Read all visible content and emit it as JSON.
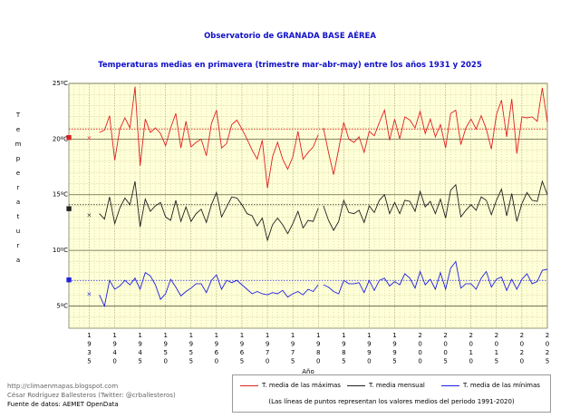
{
  "titles": {
    "main": "Observatorio de GRANADA BASE AÉREA",
    "subtitle": "Temperaturas medias en primavera (trimestre mar-abr-may) entre los años 1931 y 2025"
  },
  "y_label_letters": [
    "T",
    "e",
    "m",
    "p",
    "e",
    "r",
    "a",
    "t",
    "u",
    "r",
    "a"
  ],
  "footer": {
    "line1": "http://climaenmapas.blogspot.com",
    "line2": "César Rodríguez Ballesteros (Twitter: @crballesteros)",
    "line3": "Fuente de datos: AEMET OpenData"
  },
  "legend": {
    "max_label": "T. media de las máximas",
    "mean_label": "T. media mensual",
    "min_label": "T. media de las mínimas",
    "note": "(Las líneas de puntos representan los valores medios del periodo 1991-2020)"
  },
  "colors": {
    "max": "#e02020",
    "mean": "#202020",
    "min": "#2020e0",
    "plot_bg": "#ffffd8",
    "grid": "#c8c890",
    "title": "#1010c8"
  },
  "chart_data": {
    "type": "line",
    "title": "Temperaturas medias en primavera (trimestre mar-abr-may) entre los años 1931 y 2025",
    "xlabel": "Año",
    "ylabel": "Temperatura",
    "ylim": [
      3,
      25
    ],
    "xlim": [
      1931,
      2025
    ],
    "y_ticks": [
      5,
      10,
      15,
      20,
      25
    ],
    "y_tick_labels": [
      "5ºC",
      "10ºC",
      "15ºC",
      "20ºC",
      "25ºC"
    ],
    "x_ticks": [
      1935,
      1940,
      1945,
      1950,
      1955,
      1960,
      1965,
      1970,
      1975,
      1980,
      1985,
      1990,
      1995,
      2000,
      2005,
      2010,
      2015,
      2020,
      2025
    ],
    "x": [
      1931,
      1935,
      1937,
      1938,
      1939,
      1940,
      1941,
      1942,
      1943,
      1944,
      1945,
      1946,
      1947,
      1948,
      1949,
      1950,
      1951,
      1952,
      1953,
      1954,
      1955,
      1956,
      1957,
      1958,
      1959,
      1960,
      1961,
      1962,
      1963,
      1964,
      1965,
      1966,
      1967,
      1968,
      1969,
      1970,
      1971,
      1972,
      1973,
      1974,
      1975,
      1976,
      1977,
      1978,
      1979,
      1980,
      1981,
      1982,
      1983,
      1984,
      1985,
      1986,
      1987,
      1988,
      1989,
      1990,
      1991,
      1992,
      1993,
      1994,
      1995,
      1996,
      1997,
      1998,
      1999,
      2000,
      2001,
      2002,
      2003,
      2004,
      2005,
      2006,
      2007,
      2008,
      2009,
      2010,
      2011,
      2012,
      2013,
      2014,
      2015,
      2016,
      2017,
      2018,
      2019,
      2020,
      2021,
      2022,
      2023,
      2024,
      2025
    ],
    "series": [
      {
        "name": "T. media de las máximas",
        "values": [
          20.2,
          20.1,
          20.6,
          20.8,
          22.1,
          18.1,
          20.9,
          21.9,
          21.0,
          24.7,
          17.6,
          21.8,
          20.6,
          21.0,
          20.5,
          19.4,
          21.0,
          22.3,
          19.2,
          21.6,
          19.3,
          19.7,
          20.0,
          18.5,
          21.4,
          22.6,
          19.2,
          19.6,
          21.3,
          21.7,
          20.9,
          20.0,
          19.0,
          18.2,
          19.9,
          15.6,
          18.4,
          19.7,
          18.2,
          17.3,
          18.4,
          20.7,
          18.2,
          18.8,
          19.3,
          20.4,
          21.0,
          18.8,
          16.8,
          19.1,
          21.5,
          20.0,
          19.7,
          20.2,
          18.8,
          20.7,
          20.3,
          21.5,
          22.6,
          19.9,
          21.8,
          20.0,
          22.0,
          21.7,
          21.0,
          22.5,
          20.5,
          21.8,
          20.2,
          21.3,
          19.2,
          22.3,
          22.6,
          19.5,
          21.0,
          21.8,
          20.9,
          22.1,
          20.9,
          19.1,
          22.2,
          23.5,
          20.2,
          23.6,
          18.7,
          22.0,
          21.9,
          22.0,
          21.6,
          24.6,
          21.5
        ]
      },
      {
        "name": "T. media mensual",
        "values": [
          13.8,
          13.2,
          13.3,
          12.8,
          14.8,
          12.4,
          13.8,
          14.7,
          14.1,
          16.2,
          12.1,
          14.6,
          13.5,
          14.0,
          14.3,
          13.0,
          12.7,
          14.5,
          12.6,
          13.9,
          12.6,
          13.3,
          13.7,
          12.5,
          14.1,
          15.2,
          13.0,
          13.9,
          14.8,
          14.7,
          14.1,
          13.3,
          13.1,
          12.2,
          12.9,
          10.9,
          12.3,
          12.9,
          12.3,
          11.5,
          12.4,
          13.5,
          12.0,
          12.7,
          12.6,
          13.8,
          14.0,
          12.7,
          11.8,
          12.6,
          14.5,
          13.4,
          13.3,
          13.6,
          12.5,
          14.0,
          13.4,
          14.5,
          15.0,
          13.3,
          14.3,
          13.3,
          14.5,
          14.4,
          13.5,
          15.3,
          13.9,
          14.4,
          13.3,
          14.6,
          12.9,
          15.4,
          15.9,
          13.0,
          13.6,
          14.1,
          13.6,
          14.8,
          14.5,
          13.2,
          14.5,
          15.5,
          13.1,
          15.1,
          12.6,
          14.2,
          15.2,
          14.5,
          14.4,
          16.2,
          15.0
        ]
      },
      {
        "name": "T. media de las mínimas",
        "values": [
          7.4,
          6.1,
          6.0,
          5.0,
          7.3,
          6.5,
          6.8,
          7.3,
          6.9,
          7.5,
          6.5,
          8.0,
          7.7,
          6.9,
          5.6,
          6.1,
          7.4,
          6.7,
          5.9,
          6.3,
          6.6,
          7.0,
          7.0,
          6.2,
          7.3,
          7.8,
          6.5,
          7.3,
          7.1,
          7.3,
          6.9,
          6.5,
          6.1,
          6.3,
          6.1,
          6.0,
          6.2,
          6.1,
          6.4,
          5.8,
          6.1,
          6.3,
          6.0,
          6.5,
          6.3,
          6.9,
          6.9,
          6.7,
          6.3,
          6.1,
          7.3,
          7.0,
          7.0,
          7.1,
          6.2,
          7.3,
          6.4,
          7.3,
          7.5,
          6.8,
          7.2,
          6.9,
          7.9,
          7.5,
          6.6,
          8.1,
          6.9,
          7.4,
          6.5,
          8.0,
          6.5,
          8.4,
          9.0,
          6.6,
          7.0,
          7.0,
          6.5,
          7.5,
          8.1,
          6.7,
          7.4,
          7.6,
          6.4,
          7.4,
          6.5,
          7.4,
          7.9,
          7.0,
          7.2,
          8.2,
          8.3
        ]
      }
    ],
    "reference_1991_2020": {
      "max": 20.9,
      "mean": 14.1,
      "min": 7.3
    },
    "gap_after_year": 1980,
    "isolated_points_year": 1935
  }
}
